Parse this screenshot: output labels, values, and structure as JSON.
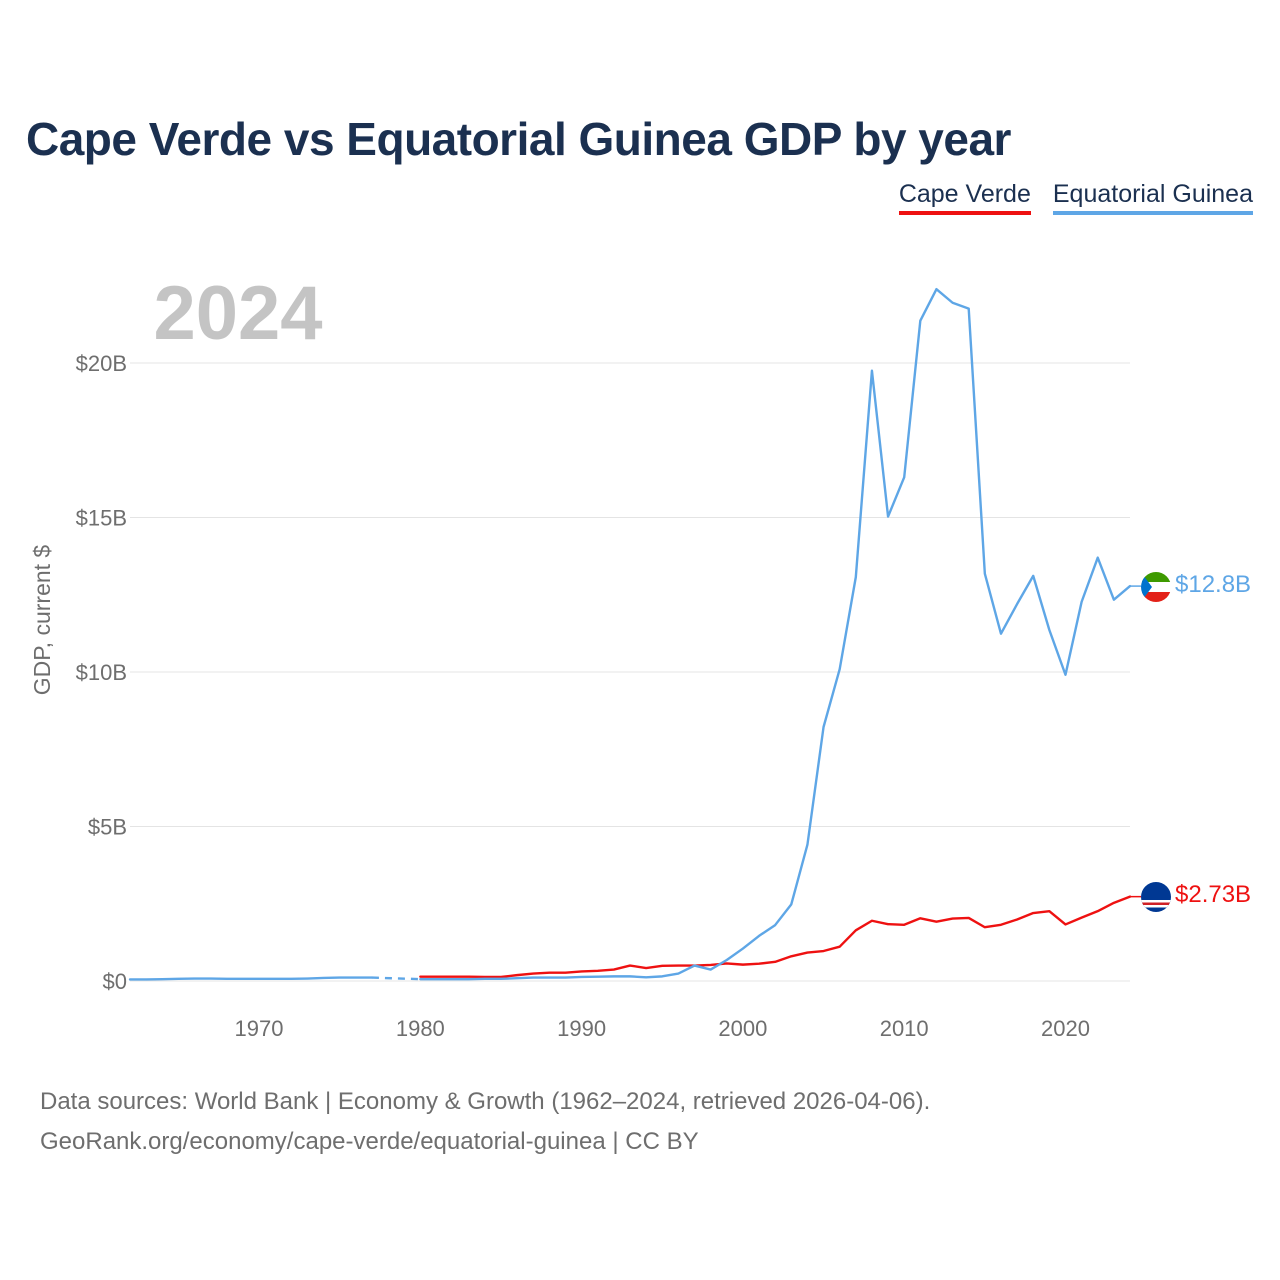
{
  "header": {
    "title": "Cape Verde vs Equatorial Guinea GDP by year"
  },
  "legend": [
    {
      "label": "Cape Verde",
      "color": "#ee1111"
    },
    {
      "label": "Equatorial Guinea",
      "color": "#5ea6e6"
    }
  ],
  "footer": {
    "line1": "Data sources: World Bank | Economy & Growth (1962–2024, retrieved 2026-04-06).",
    "line2": "GeoRank.org/economy/cape-verde/equatorial-guinea | CC BY"
  },
  "chart_data": {
    "type": "line",
    "title": "Cape Verde vs Equatorial Guinea GDP by year",
    "year_label": "2024",
    "ylabel": "GDP, current $",
    "xlabel": "",
    "xlim": [
      1962,
      2024
    ],
    "ylim": [
      0,
      22.5
    ],
    "y_ticks": [
      0,
      5,
      10,
      15,
      20
    ],
    "y_tick_labels": [
      "$0",
      "$5B",
      "$10B",
      "$15B",
      "$20B"
    ],
    "x_ticks": [
      1970,
      1980,
      1990,
      2000,
      2010,
      2020
    ],
    "x_tick_labels": [
      "1970",
      "1980",
      "1990",
      "2000",
      "2010",
      "2020"
    ],
    "grid": true,
    "units": "billions of current US$",
    "series": [
      {
        "name": "Cape Verde",
        "color": "#ee1111",
        "end_label": "$2.73B",
        "flag_icon": "cape-verde-flag-icon",
        "x": [
          1980,
          1981,
          1982,
          1983,
          1984,
          1985,
          1986,
          1987,
          1988,
          1989,
          1990,
          1991,
          1992,
          1993,
          1994,
          1995,
          1996,
          1997,
          1998,
          1999,
          2000,
          2001,
          2002,
          2003,
          2004,
          2005,
          2006,
          2007,
          2008,
          2009,
          2010,
          2011,
          2012,
          2013,
          2014,
          2015,
          2016,
          2017,
          2018,
          2019,
          2020,
          2021,
          2022,
          2023,
          2024
        ],
        "values": [
          0.14,
          0.14,
          0.14,
          0.14,
          0.13,
          0.13,
          0.19,
          0.24,
          0.27,
          0.27,
          0.31,
          0.33,
          0.37,
          0.5,
          0.42,
          0.49,
          0.5,
          0.5,
          0.52,
          0.57,
          0.53,
          0.56,
          0.62,
          0.8,
          0.92,
          0.97,
          1.11,
          1.64,
          1.95,
          1.84,
          1.82,
          2.03,
          1.92,
          2.02,
          2.04,
          1.74,
          1.82,
          1.99,
          2.2,
          2.26,
          1.83,
          2.05,
          2.26,
          2.53,
          2.73
        ]
      },
      {
        "name": "Equatorial Guinea",
        "color": "#5ea6e6",
        "end_label": "$12.8B",
        "flag_icon": "equatorial-guinea-flag-icon",
        "gap_years": [
          1977,
          1980
        ],
        "x": [
          1962,
          1963,
          1964,
          1965,
          1966,
          1967,
          1968,
          1969,
          1970,
          1971,
          1972,
          1973,
          1974,
          1975,
          1976,
          1977,
          1980,
          1981,
          1982,
          1983,
          1984,
          1985,
          1986,
          1987,
          1988,
          1989,
          1990,
          1991,
          1992,
          1993,
          1994,
          1995,
          1996,
          1997,
          1998,
          1999,
          2000,
          2001,
          2002,
          2003,
          2004,
          2005,
          2006,
          2007,
          2008,
          2009,
          2010,
          2011,
          2012,
          2013,
          2014,
          2015,
          2016,
          2017,
          2018,
          2019,
          2020,
          2021,
          2022,
          2023,
          2024
        ],
        "values": [
          0.05,
          0.05,
          0.06,
          0.07,
          0.08,
          0.08,
          0.07,
          0.07,
          0.07,
          0.07,
          0.07,
          0.08,
          0.1,
          0.11,
          0.11,
          0.11,
          0.06,
          0.06,
          0.06,
          0.06,
          0.07,
          0.07,
          0.09,
          0.11,
          0.11,
          0.11,
          0.13,
          0.14,
          0.15,
          0.15,
          0.12,
          0.15,
          0.24,
          0.5,
          0.37,
          0.68,
          1.05,
          1.46,
          1.81,
          2.48,
          4.41,
          8.22,
          10.09,
          13.07,
          19.75,
          15.03,
          16.3,
          21.37,
          22.39,
          21.95,
          21.76,
          13.18,
          11.24,
          12.2,
          13.11,
          11.36,
          9.91,
          12.27,
          13.7,
          12.34,
          12.78
        ]
      }
    ]
  }
}
